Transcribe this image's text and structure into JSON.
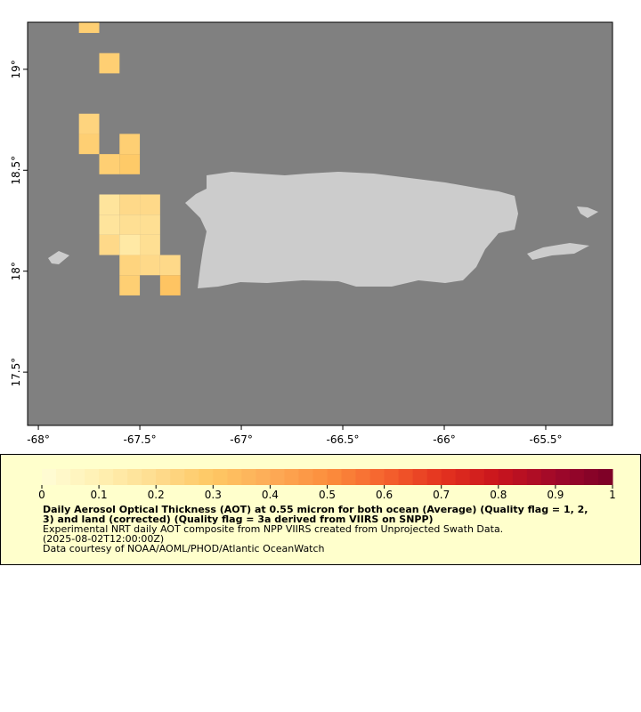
{
  "chart_data": {
    "type": "gridmap",
    "xlim": [
      -68.053,
      -65.171
    ],
    "ylim": [
      17.236,
      19.233
    ],
    "xticks": [
      {
        "value": -68,
        "label": "-68°"
      },
      {
        "value": -67.5,
        "label": "-67.5°"
      },
      {
        "value": -67,
        "label": "-67°"
      },
      {
        "value": -66.5,
        "label": "-66.5°"
      },
      {
        "value": -66,
        "label": "-66°"
      },
      {
        "value": -65.5,
        "label": "-65.5°"
      }
    ],
    "yticks": [
      {
        "value": 17.5,
        "label": "17.5°"
      },
      {
        "value": 18,
        "label": "18°"
      },
      {
        "value": 18.5,
        "label": "18.5°"
      },
      {
        "value": 19,
        "label": "19°"
      }
    ],
    "cell_size": 0.1,
    "cells": [
      {
        "lon": -67.8,
        "lat": 19.18,
        "value": 0.25
      },
      {
        "lon": -67.7,
        "lat": 18.98,
        "value": 0.27
      },
      {
        "lon": -67.8,
        "lat": 18.68,
        "value": 0.24
      },
      {
        "lon": -67.8,
        "lat": 18.58,
        "value": 0.25
      },
      {
        "lon": -67.6,
        "lat": 18.58,
        "value": 0.27
      },
      {
        "lon": -67.7,
        "lat": 18.48,
        "value": 0.25
      },
      {
        "lon": -67.6,
        "lat": 18.48,
        "value": 0.29
      },
      {
        "lon": -67.7,
        "lat": 18.28,
        "value": 0.17
      },
      {
        "lon": -67.6,
        "lat": 18.28,
        "value": 0.2
      },
      {
        "lon": -67.5,
        "lat": 18.28,
        "value": 0.22
      },
      {
        "lon": -67.7,
        "lat": 18.18,
        "value": 0.17
      },
      {
        "lon": -67.6,
        "lat": 18.18,
        "value": 0.18
      },
      {
        "lon": -67.5,
        "lat": 18.18,
        "value": 0.19
      },
      {
        "lon": -67.7,
        "lat": 18.08,
        "value": 0.2
      },
      {
        "lon": -67.6,
        "lat": 18.08,
        "value": 0.14
      },
      {
        "lon": -67.5,
        "lat": 18.08,
        "value": 0.19
      },
      {
        "lon": -67.6,
        "lat": 17.98,
        "value": 0.24
      },
      {
        "lon": -67.5,
        "lat": 17.98,
        "value": 0.2
      },
      {
        "lon": -67.4,
        "lat": 17.98,
        "value": 0.22
      },
      {
        "lon": -67.6,
        "lat": 17.88,
        "value": 0.25
      },
      {
        "lon": -67.4,
        "lat": 17.88,
        "value": 0.3
      }
    ],
    "clim": [
      0,
      1
    ],
    "cticks": [
      0,
      0.1,
      0.2,
      0.3,
      0.4,
      0.5,
      0.6,
      0.7,
      0.8,
      0.9,
      1
    ],
    "colorscale": [
      "#fffcd6",
      "#fff0b2",
      "#fedc8e",
      "#fec763",
      "#fdac57",
      "#fc8e3d",
      "#f5632e",
      "#e4331f",
      "#c8141d",
      "#a0082a",
      "#7a0026"
    ],
    "color_steps": 40,
    "title": "Daily Aerosol Optical Thickness (AOT) at 0.55 micron for both ocean (Average) (Quality flag = 1, 2, 3) and land (corrected) (Quality flag = 3a derived from VIIRS on SNPP)",
    "notes": [
      "Experimental NRT daily AOT composite from NPP VIIRS created from Unprojected Swath Data.",
      "(2025-08-02T12:00:00Z)",
      "Data courtesy of NOAA/AOML/PHOD/Atlantic OceanWatch"
    ]
  }
}
